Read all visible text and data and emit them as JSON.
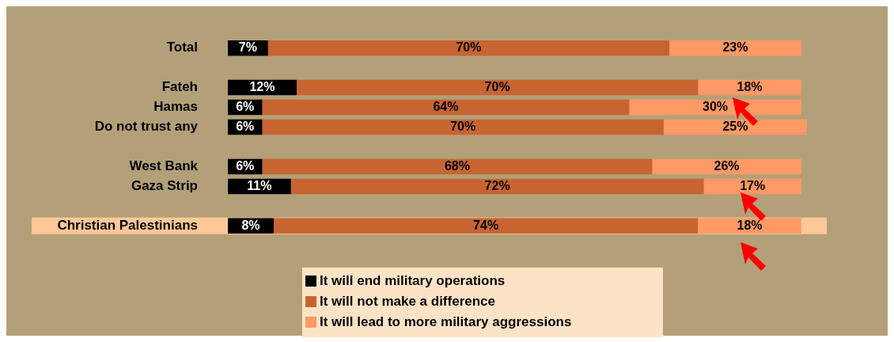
{
  "chart_data": {
    "type": "bar",
    "orientation": "horizontal",
    "stacked": true,
    "tick_labels": "y",
    "grid": false,
    "legend": "bottom",
    "categories": [
      "Total",
      null,
      "Fateh",
      "Hamas",
      "Do not trust any",
      null,
      "West Bank",
      "Gaza Strip",
      null,
      "Christian Palestinians"
    ],
    "series": [
      {
        "name": "It will end military operations",
        "color": "#000000",
        "values": [
          7,
          null,
          12,
          6,
          6,
          null,
          6,
          11,
          null,
          8
        ],
        "value_labels": [
          "7%",
          null,
          "12%",
          "6%",
          "6%",
          null,
          "6%",
          "11%",
          null,
          "8%"
        ]
      },
      {
        "name": "It will not make a difference",
        "color": "#c86432",
        "values": [
          70,
          null,
          70,
          64,
          70,
          null,
          68,
          72,
          null,
          74
        ],
        "value_labels": [
          "70%",
          null,
          "70%",
          "64%",
          "70%",
          null,
          "68%",
          "72%",
          null,
          "74%"
        ]
      },
      {
        "name": "It will lead to more military aggressions",
        "color": "#ff9966",
        "values": [
          23,
          null,
          18,
          30,
          25,
          null,
          26,
          17,
          null,
          18
        ],
        "value_labels": [
          "23%",
          null,
          "18%",
          "30%",
          "25%",
          null,
          "26%",
          "17%",
          null,
          "18%"
        ]
      }
    ],
    "bands": [
      {
        "axis": "y",
        "from": "Christian Palestinians",
        "to": "Christian Palestinians",
        "color": "#ffc896"
      }
    ]
  }
}
